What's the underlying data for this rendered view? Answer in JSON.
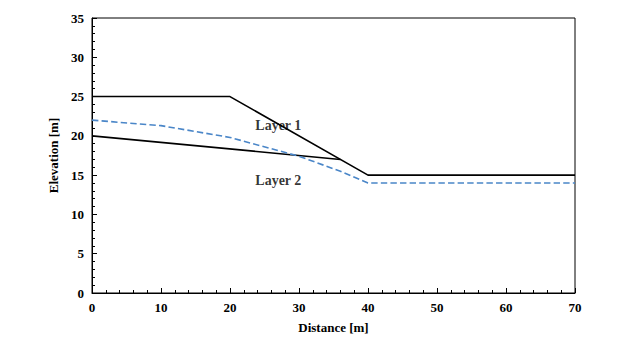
{
  "chart_data": {
    "type": "line",
    "x_label": "Distance [m]",
    "y_label": "Elevation [m]",
    "xlim": [
      0,
      70
    ],
    "xticks": [
      0,
      10,
      20,
      30,
      40,
      50,
      60,
      70
    ],
    "ylim": [
      0,
      35
    ],
    "yticks": [
      0,
      5,
      10,
      15,
      20,
      25,
      30,
      35
    ],
    "grid": false,
    "series": [
      {
        "color": "#000000",
        "line_style": "solid",
        "x": [
          0,
          20,
          40,
          70
        ],
        "values": [
          25,
          25,
          15,
          15
        ]
      },
      {
        "color": "#000000",
        "line_style": "solid",
        "x": [
          0,
          36
        ],
        "values": [
          20,
          17
        ]
      },
      {
        "color": "#4a86c8",
        "line_style": "dashed",
        "x": [
          0,
          10,
          20,
          30,
          36,
          40,
          70
        ],
        "values": [
          22,
          21.3,
          19.8,
          17.4,
          15.5,
          14,
          14
        ]
      }
    ],
    "annotations": [
      {
        "text": "Layer 1",
        "x": 27,
        "y": 21.3
      },
      {
        "text": "Layer 2",
        "x": 27,
        "y": 14.3
      }
    ]
  }
}
